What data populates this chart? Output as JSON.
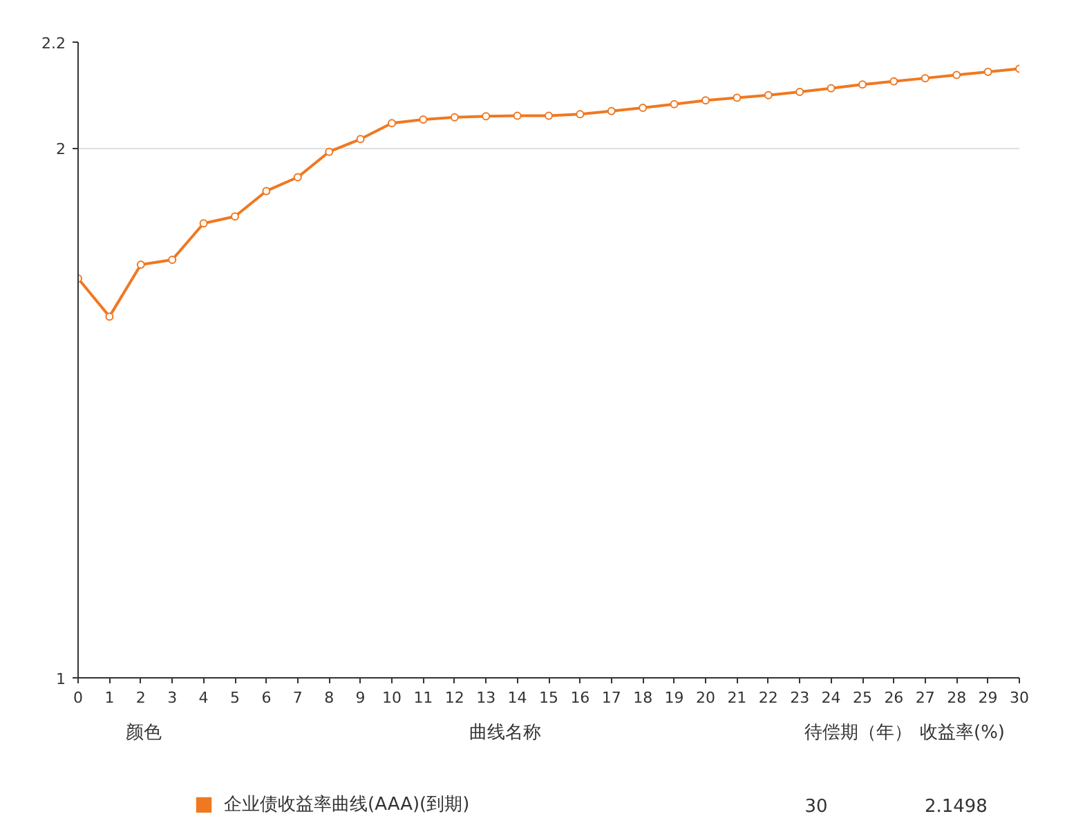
{
  "chart_data": {
    "type": "line",
    "x": [
      0,
      1,
      2,
      3,
      4,
      5,
      6,
      7,
      8,
      9,
      10,
      11,
      12,
      13,
      14,
      15,
      16,
      17,
      18,
      19,
      20,
      21,
      22,
      23,
      24,
      25,
      26,
      27,
      28,
      29,
      30
    ],
    "series": [
      {
        "name": "企业债收益率曲线(AAA)(到期)",
        "color": "#f07820",
        "values": [
          1.754,
          1.682,
          1.78,
          1.789,
          1.858,
          1.871,
          1.919,
          1.945,
          1.993,
          2.017,
          2.047,
          2.054,
          2.058,
          2.06,
          2.061,
          2.061,
          2.064,
          2.07,
          2.076,
          2.083,
          2.09,
          2.095,
          2.1,
          2.106,
          2.113,
          2.12,
          2.126,
          2.132,
          2.138,
          2.144,
          2.1498
        ]
      }
    ],
    "xlim": [
      0,
      30
    ],
    "xticks": [
      0,
      1,
      2,
      3,
      4,
      5,
      6,
      7,
      8,
      9,
      10,
      11,
      12,
      13,
      14,
      15,
      16,
      17,
      18,
      19,
      20,
      21,
      22,
      23,
      24,
      25,
      26,
      27,
      28,
      29,
      30
    ],
    "ylim": [
      1,
      2.2
    ],
    "yticks": [
      1,
      2,
      2.2
    ],
    "grid": "y",
    "marker": "circle",
    "line_style": "solid",
    "legend": "bottom",
    "annotations": [
      "颜色",
      "曲线名称",
      "待偿期（年）",
      "收益率(%)",
      "30",
      "2.1498"
    ]
  }
}
